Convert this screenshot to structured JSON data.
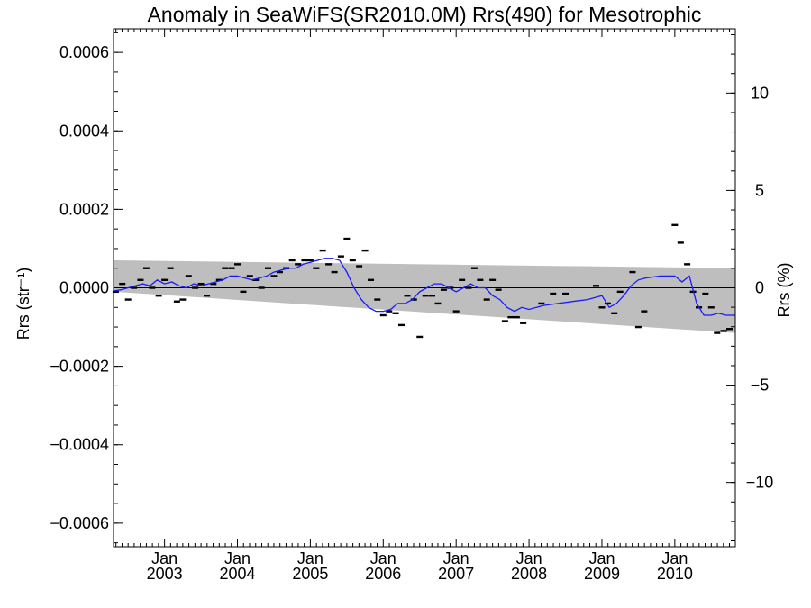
{
  "chart_data": {
    "type": "scatter",
    "title": "Anomaly in SeaWiFS(SR2010.0M) Rrs(490) for Mesotrophic",
    "ylabel_left": "Rrs (str⁻¹)",
    "ylabel_right": "Rrs (%)",
    "xlim": [
      2002.3,
      2010.83
    ],
    "ylim_left": [
      -0.00066,
      0.00066
    ],
    "ylim_right": [
      -13.3,
      13.3
    ],
    "x_ticks": [
      {
        "value": 2003.0,
        "month": "Jan",
        "year": "2003"
      },
      {
        "value": 2004.0,
        "month": "Jan",
        "year": "2004"
      },
      {
        "value": 2005.0,
        "month": "Jan",
        "year": "2005"
      },
      {
        "value": 2006.0,
        "month": "Jan",
        "year": "2006"
      },
      {
        "value": 2007.0,
        "month": "Jan",
        "year": "2007"
      },
      {
        "value": 2008.0,
        "month": "Jan",
        "year": "2008"
      },
      {
        "value": 2009.0,
        "month": "Jan",
        "year": "2009"
      },
      {
        "value": 2010.0,
        "month": "Jan",
        "year": "2010"
      }
    ],
    "y_ticks_left": [
      {
        "value": 0.0006,
        "label": "0.0006"
      },
      {
        "value": 0.0004,
        "label": "0.0004"
      },
      {
        "value": 0.0002,
        "label": "0.0002"
      },
      {
        "value": 0.0,
        "label": "0.0000"
      },
      {
        "value": -0.0002,
        "label": "−0.0002"
      },
      {
        "value": -0.0004,
        "label": "−0.0004"
      },
      {
        "value": -0.0006,
        "label": "−0.0006"
      }
    ],
    "y_ticks_right": [
      {
        "value": 10,
        "label": "10"
      },
      {
        "value": 5,
        "label": "5"
      },
      {
        "value": 0,
        "label": "0"
      },
      {
        "value": -5,
        "label": "−5"
      },
      {
        "value": -10,
        "label": "−10"
      }
    ],
    "band": {
      "x": [
        2002.3,
        2010.83
      ],
      "upper": [
        7e-05,
        5e-05
      ],
      "lower": [
        -1e-05,
        -0.000115
      ]
    },
    "zero_line": 0,
    "points": [
      {
        "x": 2002.33,
        "y": -1e-05
      },
      {
        "x": 2002.42,
        "y": 1e-05
      },
      {
        "x": 2002.5,
        "y": -3e-05
      },
      {
        "x": 2002.58,
        "y": 0.0
      },
      {
        "x": 2002.67,
        "y": 2e-05
      },
      {
        "x": 2002.75,
        "y": 5e-05
      },
      {
        "x": 2002.83,
        "y": 0.0
      },
      {
        "x": 2002.92,
        "y": -2e-05
      },
      {
        "x": 2003.0,
        "y": 2e-05
      },
      {
        "x": 2003.08,
        "y": 5e-05
      },
      {
        "x": 2003.17,
        "y": -3.5e-05
      },
      {
        "x": 2003.25,
        "y": -3e-05
      },
      {
        "x": 2003.33,
        "y": 3e-05
      },
      {
        "x": 2003.42,
        "y": 0.0
      },
      {
        "x": 2003.5,
        "y": 1e-05
      },
      {
        "x": 2003.58,
        "y": -2e-05
      },
      {
        "x": 2003.67,
        "y": 1e-05
      },
      {
        "x": 2003.75,
        "y": 2e-05
      },
      {
        "x": 2003.83,
        "y": 5e-05
      },
      {
        "x": 2003.92,
        "y": 5e-05
      },
      {
        "x": 2004.0,
        "y": 6e-05
      },
      {
        "x": 2004.08,
        "y": -1e-05
      },
      {
        "x": 2004.17,
        "y": 3e-05
      },
      {
        "x": 2004.25,
        "y": 2e-05
      },
      {
        "x": 2004.33,
        "y": 0.0
      },
      {
        "x": 2004.42,
        "y": 5e-05
      },
      {
        "x": 2004.5,
        "y": 3e-05
      },
      {
        "x": 2004.58,
        "y": 4e-05
      },
      {
        "x": 2004.67,
        "y": 5e-05
      },
      {
        "x": 2004.75,
        "y": 7e-05
      },
      {
        "x": 2004.83,
        "y": 6e-05
      },
      {
        "x": 2004.92,
        "y": 7e-05
      },
      {
        "x": 2005.0,
        "y": 7e-05
      },
      {
        "x": 2005.08,
        "y": 5e-05
      },
      {
        "x": 2005.17,
        "y": 9.5e-05
      },
      {
        "x": 2005.25,
        "y": 6e-05
      },
      {
        "x": 2005.33,
        "y": 4e-05
      },
      {
        "x": 2005.42,
        "y": 8e-05
      },
      {
        "x": 2005.5,
        "y": 0.000125
      },
      {
        "x": 2005.58,
        "y": 7e-05
      },
      {
        "x": 2005.67,
        "y": 5.5e-05
      },
      {
        "x": 2005.75,
        "y": 9.5e-05
      },
      {
        "x": 2005.83,
        "y": 2e-05
      },
      {
        "x": 2005.92,
        "y": -3e-05
      },
      {
        "x": 2006.0,
        "y": -7e-05
      },
      {
        "x": 2006.08,
        "y": -6e-05
      },
      {
        "x": 2006.17,
        "y": -6.5e-05
      },
      {
        "x": 2006.25,
        "y": -9.5e-05
      },
      {
        "x": 2006.33,
        "y": -2e-05
      },
      {
        "x": 2006.42,
        "y": -3e-05
      },
      {
        "x": 2006.5,
        "y": -0.000125
      },
      {
        "x": 2006.58,
        "y": -2e-05
      },
      {
        "x": 2006.67,
        "y": -2e-05
      },
      {
        "x": 2006.75,
        "y": -4e-05
      },
      {
        "x": 2006.83,
        "y": -5e-06
      },
      {
        "x": 2006.92,
        "y": 0.0
      },
      {
        "x": 2007.0,
        "y": -6e-05
      },
      {
        "x": 2007.08,
        "y": 2e-05
      },
      {
        "x": 2007.17,
        "y": 0.0
      },
      {
        "x": 2007.25,
        "y": 5e-05
      },
      {
        "x": 2007.33,
        "y": 2e-05
      },
      {
        "x": 2007.42,
        "y": -3e-05
      },
      {
        "x": 2007.5,
        "y": 2e-05
      },
      {
        "x": 2007.58,
        "y": -5e-06
      },
      {
        "x": 2007.67,
        "y": -8.5e-05
      },
      {
        "x": 2007.75,
        "y": -7.5e-05
      },
      {
        "x": 2007.83,
        "y": -7.5e-05
      },
      {
        "x": 2007.92,
        "y": -9e-05
      },
      {
        "x": 2008.17,
        "y": -4e-05
      },
      {
        "x": 2008.33,
        "y": -1.5e-05
      },
      {
        "x": 2008.5,
        "y": -1.5e-05
      },
      {
        "x": 2008.92,
        "y": 5e-06
      },
      {
        "x": 2009.0,
        "y": -5e-05
      },
      {
        "x": 2009.08,
        "y": -4e-05
      },
      {
        "x": 2009.17,
        "y": -6.5e-05
      },
      {
        "x": 2009.25,
        "y": -1e-05
      },
      {
        "x": 2009.42,
        "y": 4e-05
      },
      {
        "x": 2009.5,
        "y": -0.0001
      },
      {
        "x": 2009.58,
        "y": -6e-05
      },
      {
        "x": 2010.0,
        "y": 0.00016
      },
      {
        "x": 2010.08,
        "y": 0.000115
      },
      {
        "x": 2010.17,
        "y": 6e-05
      },
      {
        "x": 2010.25,
        "y": -1e-05
      },
      {
        "x": 2010.33,
        "y": -5e-05
      },
      {
        "x": 2010.42,
        "y": -1.5e-05
      },
      {
        "x": 2010.5,
        "y": -5e-05
      },
      {
        "x": 2010.58,
        "y": -0.000115
      },
      {
        "x": 2010.67,
        "y": -0.00011
      },
      {
        "x": 2010.75,
        "y": -0.000105
      }
    ],
    "line": {
      "color": "#1a1aff",
      "x": [
        2002.3,
        2002.4,
        2002.5,
        2002.6,
        2002.7,
        2002.8,
        2002.9,
        2003.0,
        2003.1,
        2003.2,
        2003.3,
        2003.4,
        2003.5,
        2003.6,
        2003.7,
        2003.8,
        2003.9,
        2004.0,
        2004.1,
        2004.2,
        2004.3,
        2004.4,
        2004.5,
        2004.6,
        2004.7,
        2004.8,
        2004.9,
        2005.0,
        2005.1,
        2005.2,
        2005.3,
        2005.4,
        2005.5,
        2005.6,
        2005.7,
        2005.8,
        2005.9,
        2006.0,
        2006.1,
        2006.2,
        2006.3,
        2006.4,
        2006.5,
        2006.6,
        2006.7,
        2006.8,
        2006.9,
        2007.0,
        2007.1,
        2007.2,
        2007.3,
        2007.4,
        2007.5,
        2007.6,
        2007.7,
        2007.8,
        2007.9,
        2008.0,
        2008.2,
        2008.4,
        2008.6,
        2008.8,
        2009.0,
        2009.1,
        2009.2,
        2009.3,
        2009.4,
        2009.5,
        2009.6,
        2009.8,
        2010.0,
        2010.1,
        2010.2,
        2010.3,
        2010.4,
        2010.5,
        2010.6,
        2010.7,
        2010.83
      ],
      "y": [
        -8e-06,
        -5e-06,
        0.0,
        5e-06,
        1e-05,
        5e-06,
        2e-05,
        1e-05,
        1.5e-05,
        5e-06,
        0.0,
        1e-05,
        5e-06,
        1e-05,
        1.5e-05,
        2e-05,
        3e-05,
        3e-05,
        2.5e-05,
        2e-05,
        2.5e-05,
        3e-05,
        4e-05,
        4.5e-05,
        5e-05,
        5e-05,
        6e-05,
        6.5e-05,
        7e-05,
        7.5e-05,
        7.5e-05,
        7e-05,
        4e-05,
        0.0,
        -3e-05,
        -5e-05,
        -6e-05,
        -6e-05,
        -5.5e-05,
        -4e-05,
        -4e-05,
        -3e-05,
        -1e-05,
        0.0,
        1e-05,
        1e-05,
        0.0,
        -1e-05,
        0.0,
        1e-05,
        0.0,
        0.0,
        -2e-05,
        -3e-05,
        -5e-05,
        -6e-05,
        -5e-05,
        -5.5e-05,
        -4.5e-05,
        -4e-05,
        -3.5e-05,
        -3e-05,
        -2e-05,
        -5e-05,
        -4e-05,
        -2e-05,
        5e-06,
        2e-05,
        2.5e-05,
        3e-05,
        3e-05,
        1.5e-05,
        3e-05,
        -4e-05,
        -7e-05,
        -7e-05,
        -6.5e-05,
        -7e-05,
        -7e-05
      ]
    }
  }
}
